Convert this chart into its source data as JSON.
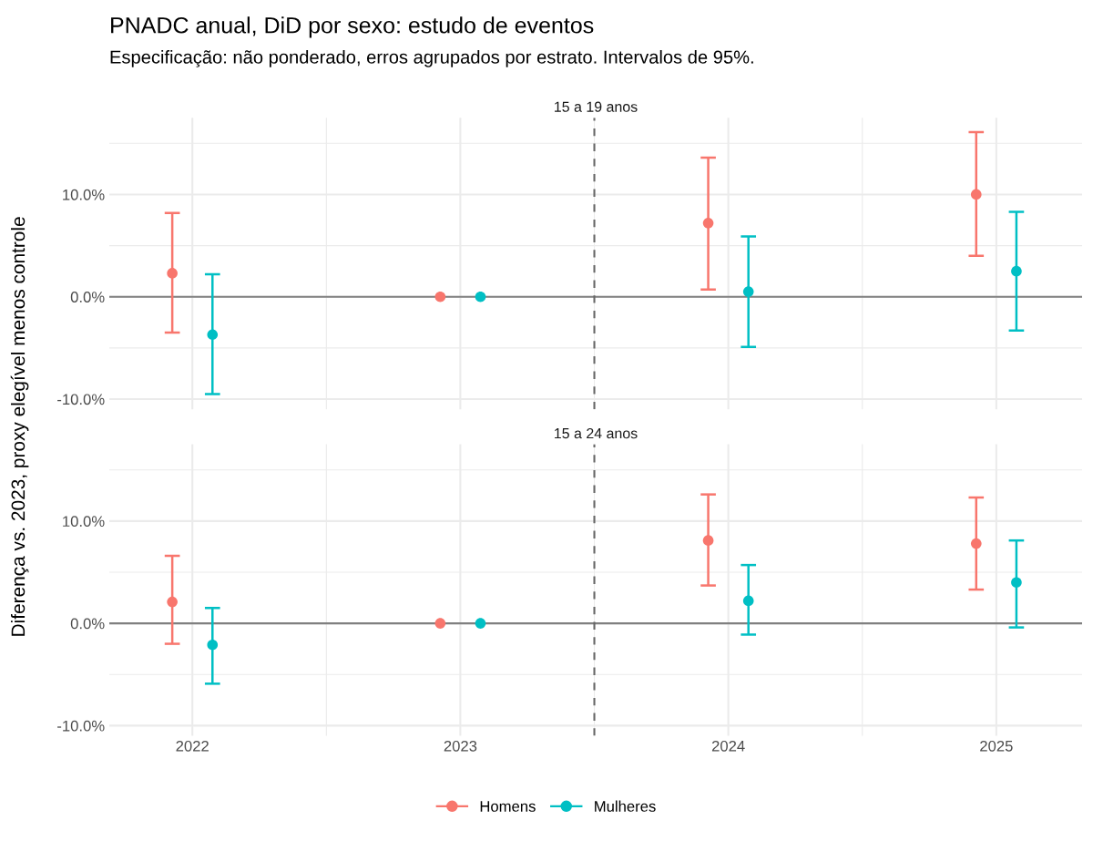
{
  "chart_data": [
    {
      "type": "scatter",
      "title": "PNADC anual, DiD por sexo: estudo de eventos",
      "subtitle": "Especificação: não ponderado, erros agrupados por estrato. Intervalos de 95%.",
      "ylabel": "Diferença vs. 2023, proxy elegível menos controle",
      "annotations": [
        "15 a 19 anos"
      ],
      "series": [
        {
          "name": "Homens",
          "color": "#f8766d",
          "x": [
            2021.925,
            2022.925,
            2023.925,
            2024.925
          ],
          "values": [
            2.3,
            0,
            7.2,
            10.0
          ],
          "errors": [
            [
              -3.5,
              8.2
            ],
            null,
            [
              0.7,
              13.6
            ],
            [
              4.0,
              16.1
            ]
          ]
        },
        {
          "name": "Mulheres",
          "color": "#00bfc4",
          "x": [
            2022.075,
            2023.075,
            2024.075,
            2025.075
          ],
          "values": [
            -3.7,
            0,
            0.5,
            2.5
          ],
          "errors": [
            [
              -9.5,
              2.2
            ],
            null,
            [
              -4.9,
              5.9
            ],
            [
              -3.3,
              8.3
            ]
          ]
        }
      ],
      "xlim": [
        2021.69,
        2025.32
      ],
      "xticks": [
        2022,
        2023,
        2024,
        2025
      ],
      "ylim": [
        -11,
        17.5
      ],
      "yticks": [
        {
          "value": -10,
          "label": "-10.0%"
        },
        {
          "value": 0,
          "label": "0.0%"
        },
        {
          "value": 10,
          "label": "10.0%"
        }
      ],
      "ref_lines": [
        {
          "axis": "y",
          "value": 0,
          "color": "#808080",
          "line_style": "solid"
        },
        {
          "axis": "x",
          "value": 2023.5,
          "color": "#666666",
          "line_style": "dashed"
        }
      ],
      "grid": true,
      "marker": "circle",
      "tick_labels": "y",
      "legend": "bottom"
    },
    {
      "type": "scatter",
      "annotations": [
        "15 a 24 anos"
      ],
      "series": [
        {
          "name": "Homens",
          "color": "#f8766d",
          "x": [
            2021.925,
            2022.925,
            2023.925,
            2024.925
          ],
          "values": [
            2.1,
            0,
            8.1,
            7.8
          ],
          "errors": [
            [
              -2.0,
              6.6
            ],
            null,
            [
              3.7,
              12.6
            ],
            [
              3.3,
              12.3
            ]
          ]
        },
        {
          "name": "Mulheres",
          "color": "#00bfc4",
          "x": [
            2022.075,
            2023.075,
            2024.075,
            2025.075
          ],
          "values": [
            -2.1,
            0,
            2.2,
            4.0
          ],
          "errors": [
            [
              -5.9,
              1.5
            ],
            null,
            [
              -1.1,
              5.7
            ],
            [
              -0.4,
              8.1
            ]
          ]
        }
      ],
      "xlim": [
        2021.69,
        2025.32
      ],
      "xticks": [
        2022,
        2023,
        2024,
        2025
      ],
      "ylim": [
        -11,
        17.5
      ],
      "yticks": [
        {
          "value": -10,
          "label": "-10.0%"
        },
        {
          "value": 0,
          "label": "0.0%"
        },
        {
          "value": 10,
          "label": "10.0%"
        }
      ],
      "ref_lines": [
        {
          "axis": "y",
          "value": 0,
          "color": "#808080",
          "line_style": "solid"
        },
        {
          "axis": "x",
          "value": 2023.5,
          "color": "#666666",
          "line_style": "dashed"
        }
      ],
      "grid": true,
      "marker": "circle",
      "legend": "bottom"
    }
  ]
}
